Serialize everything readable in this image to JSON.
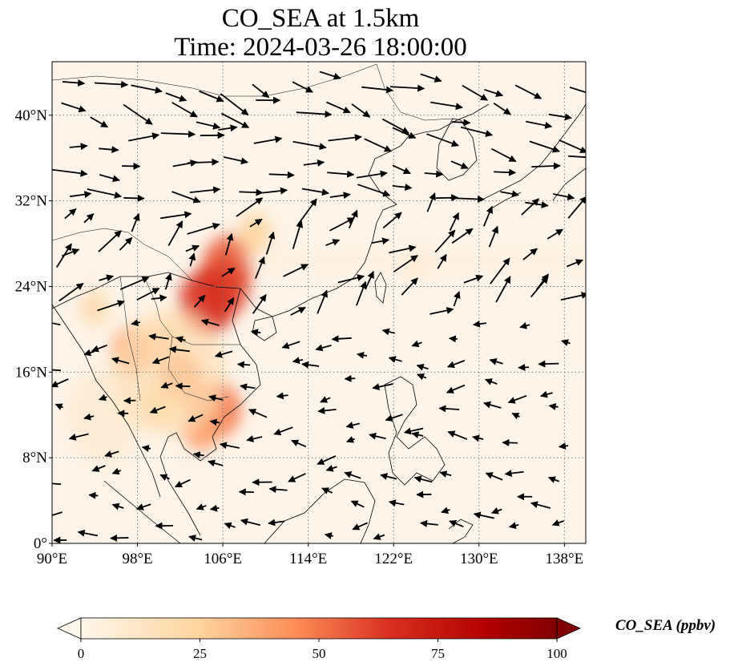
{
  "title_line1": "CO_SEA at 1.5km",
  "title_line2": "Time: 2024-03-26 18:00:00",
  "map": {
    "extent": {
      "lon_min": 90,
      "lon_max": 140,
      "lat_min": 0,
      "lat_max": 45
    },
    "lon_ticks": [
      {
        "value": 90,
        "label": "90°E"
      },
      {
        "value": 98,
        "label": "98°E"
      },
      {
        "value": 106,
        "label": "106°E"
      },
      {
        "value": 114,
        "label": "114°E"
      },
      {
        "value": 122,
        "label": "122°E"
      },
      {
        "value": 130,
        "label": "130°E"
      },
      {
        "value": 138,
        "label": "138°E"
      }
    ],
    "lat_ticks": [
      {
        "value": 0,
        "label": "0°"
      },
      {
        "value": 8,
        "label": "8°N"
      },
      {
        "value": 16,
        "label": "16°N"
      },
      {
        "value": 24,
        "label": "24°N"
      },
      {
        "value": 32,
        "label": "32°N"
      },
      {
        "value": 40,
        "label": "40°N"
      }
    ],
    "background_color": "#fdf5ea",
    "gridlines": "dotted",
    "concentration_hotspots": [
      {
        "lon": 106.5,
        "lat": 26.0,
        "value": 55
      },
      {
        "lon": 106.0,
        "lat": 24.0,
        "value": 60
      },
      {
        "lon": 104.5,
        "lat": 22.5,
        "value": 65
      },
      {
        "lon": 102.0,
        "lat": 15.5,
        "value": 45
      },
      {
        "lon": 105.5,
        "lat": 12.5,
        "value": 50
      },
      {
        "lon": 104.0,
        "lat": 11.0,
        "value": 40
      },
      {
        "lon": 97.5,
        "lat": 18.0,
        "value": 40
      },
      {
        "lon": 100.5,
        "lat": 18.5,
        "value": 30
      },
      {
        "lon": 100.0,
        "lat": 13.0,
        "value": 25
      },
      {
        "lon": 94.0,
        "lat": 22.0,
        "value": 20
      },
      {
        "lon": 109.0,
        "lat": 29.0,
        "value": 25
      },
      {
        "lon": 124.0,
        "lat": 26.0,
        "value": 10
      }
    ],
    "wind_vectors": "quiver arrows"
  },
  "colorbar": {
    "colormap": "OrRd",
    "min": 0,
    "max": 100,
    "extend": "both",
    "ticks": [
      {
        "value": 0,
        "label": "0"
      },
      {
        "value": 25,
        "label": "25"
      },
      {
        "value": 50,
        "label": "50"
      },
      {
        "value": 75,
        "label": "75"
      },
      {
        "value": 100,
        "label": "100"
      }
    ],
    "label": "CO_SEA (ppbv)"
  }
}
